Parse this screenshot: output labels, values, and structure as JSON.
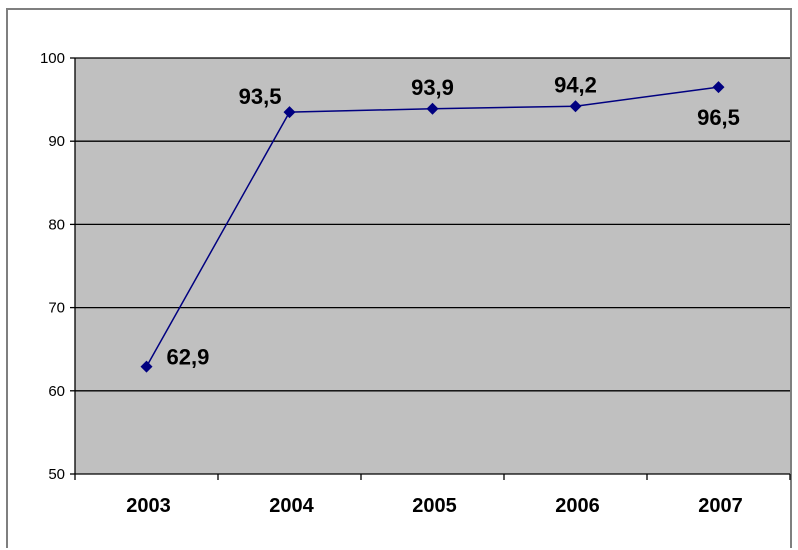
{
  "chart_data": {
    "type": "line",
    "title": "",
    "xlabel": "",
    "ylabel": "",
    "categories": [
      "2003",
      "2004",
      "2005",
      "2006",
      "2007"
    ],
    "series": [
      {
        "values": [
          62.9,
          93.5,
          93.9,
          94.2,
          96.5
        ],
        "labels": [
          "62,9",
          "93,5",
          "93,9",
          "94,2",
          "96,5"
        ],
        "color": "#000080"
      }
    ],
    "ylim": [
      50,
      100
    ],
    "yticks": [
      "50",
      "60",
      "70",
      "80",
      "90",
      "100"
    ],
    "grid": true,
    "legend": "none",
    "plot_background": "#c0c0c0",
    "gridline_color": "#000000"
  }
}
